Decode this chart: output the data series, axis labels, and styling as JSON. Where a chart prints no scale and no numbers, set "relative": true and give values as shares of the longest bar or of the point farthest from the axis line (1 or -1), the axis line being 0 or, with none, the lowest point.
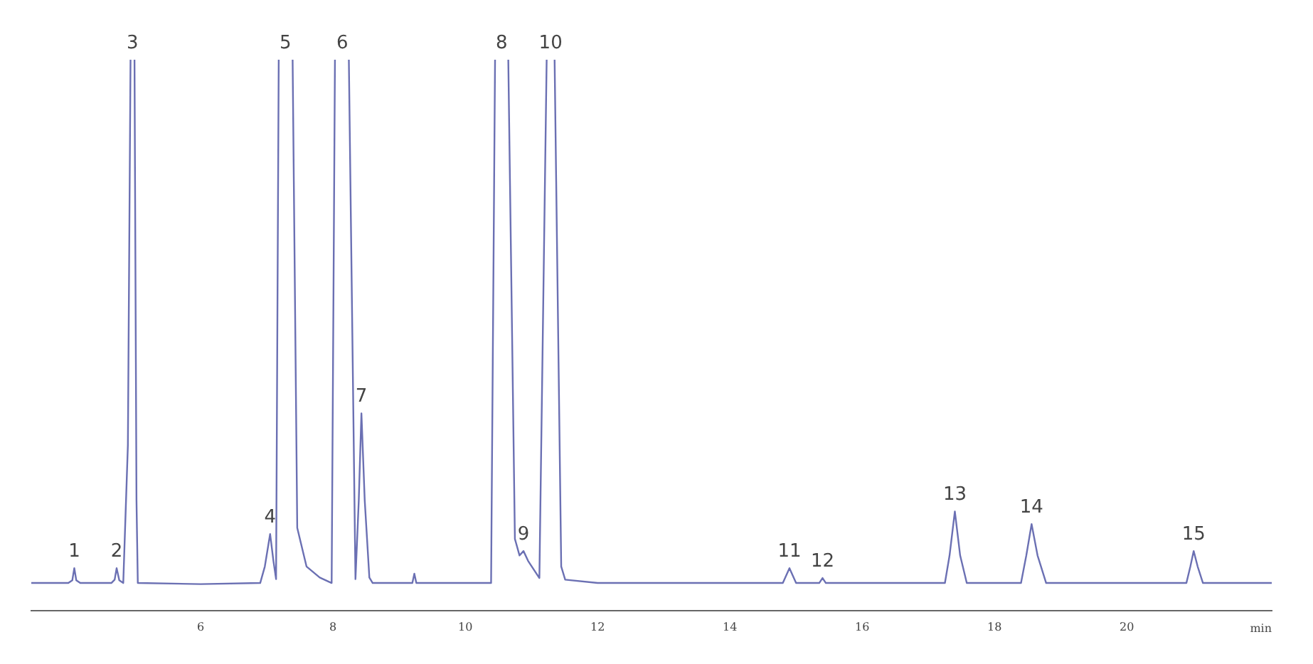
{
  "chart_data": {
    "type": "line",
    "relative": true,
    "xlabel": "min",
    "xlim": [
      3.44,
      22.19
    ],
    "xticks": [
      6,
      8,
      10,
      12,
      14,
      16,
      18,
      20
    ],
    "marker": "none",
    "color": "#6b70b3",
    "x": [
      3.44,
      4.0,
      4.06,
      4.09,
      4.12,
      4.18,
      4.65,
      4.7,
      4.73,
      4.77,
      4.83,
      4.9,
      4.94,
      4.97,
      5.0,
      5.03,
      5.05,
      6.0,
      6.9,
      6.97,
      7.05,
      7.1,
      7.14,
      7.18,
      7.28,
      7.39,
      7.46,
      7.6,
      7.8,
      7.98,
      8.03,
      8.14,
      8.24,
      8.34,
      8.39,
      8.43,
      8.48,
      8.55,
      8.6,
      9.2,
      9.23,
      9.26,
      10.39,
      10.45,
      10.55,
      10.65,
      10.75,
      10.82,
      10.88,
      10.95,
      11.12,
      11.23,
      11.29,
      11.35,
      11.45,
      11.51,
      12.0,
      14.8,
      14.9,
      15.0,
      15.35,
      15.4,
      15.45,
      17.25,
      17.32,
      17.4,
      17.48,
      17.58,
      18.4,
      18.48,
      18.56,
      18.65,
      18.78,
      20.9,
      20.96,
      21.01,
      21.07,
      21.15,
      22.19
    ],
    "values": [
      0.05,
      0.05,
      0.055,
      0.077,
      0.055,
      0.05,
      0.05,
      0.056,
      0.077,
      0.055,
      0.05,
      0.3,
      1,
      null,
      1,
      0.2,
      0.05,
      0.048,
      0.05,
      0.08,
      0.139,
      0.09,
      0.057,
      1,
      null,
      1,
      0.15,
      0.08,
      0.06,
      0.05,
      1,
      null,
      1,
      0.057,
      0.2,
      0.358,
      0.2,
      0.06,
      0.05,
      0.05,
      0.067,
      0.05,
      0.05,
      1,
      null,
      1,
      0.13,
      0.1,
      0.108,
      0.09,
      0.059,
      1,
      null,
      1,
      0.08,
      0.056,
      0.05,
      0.05,
      0.077,
      0.05,
      0.05,
      0.059,
      0.05,
      0.05,
      0.1,
      0.18,
      0.1,
      0.05,
      0.05,
      0.1,
      0.157,
      0.1,
      0.05,
      0.05,
      0.08,
      0.108,
      0.08,
      0.05,
      0.05
    ],
    "annotations": [
      {
        "text": "1",
        "x": 4.09,
        "y": 0.077
      },
      {
        "text": "2",
        "x": 4.73,
        "y": 0.077
      },
      {
        "text": "3",
        "x": 4.97,
        "y": 1
      },
      {
        "text": "4",
        "x": 7.05,
        "y": 0.139
      },
      {
        "text": "5",
        "x": 7.28,
        "y": 1
      },
      {
        "text": "6",
        "x": 8.14,
        "y": 1
      },
      {
        "text": "7",
        "x": 8.43,
        "y": 0.358
      },
      {
        "text": "8",
        "x": 10.55,
        "y": 1
      },
      {
        "text": "9",
        "x": 10.88,
        "y": 0.108
      },
      {
        "text": "10",
        "x": 11.29,
        "y": 1
      },
      {
        "text": "11",
        "x": 14.9,
        "y": 0.077
      },
      {
        "text": "12",
        "x": 15.4,
        "y": 0.059
      },
      {
        "text": "13",
        "x": 17.4,
        "y": 0.18
      },
      {
        "text": "14",
        "x": 18.56,
        "y": 0.157
      },
      {
        "text": "15",
        "x": 21.01,
        "y": 0.108
      }
    ]
  }
}
